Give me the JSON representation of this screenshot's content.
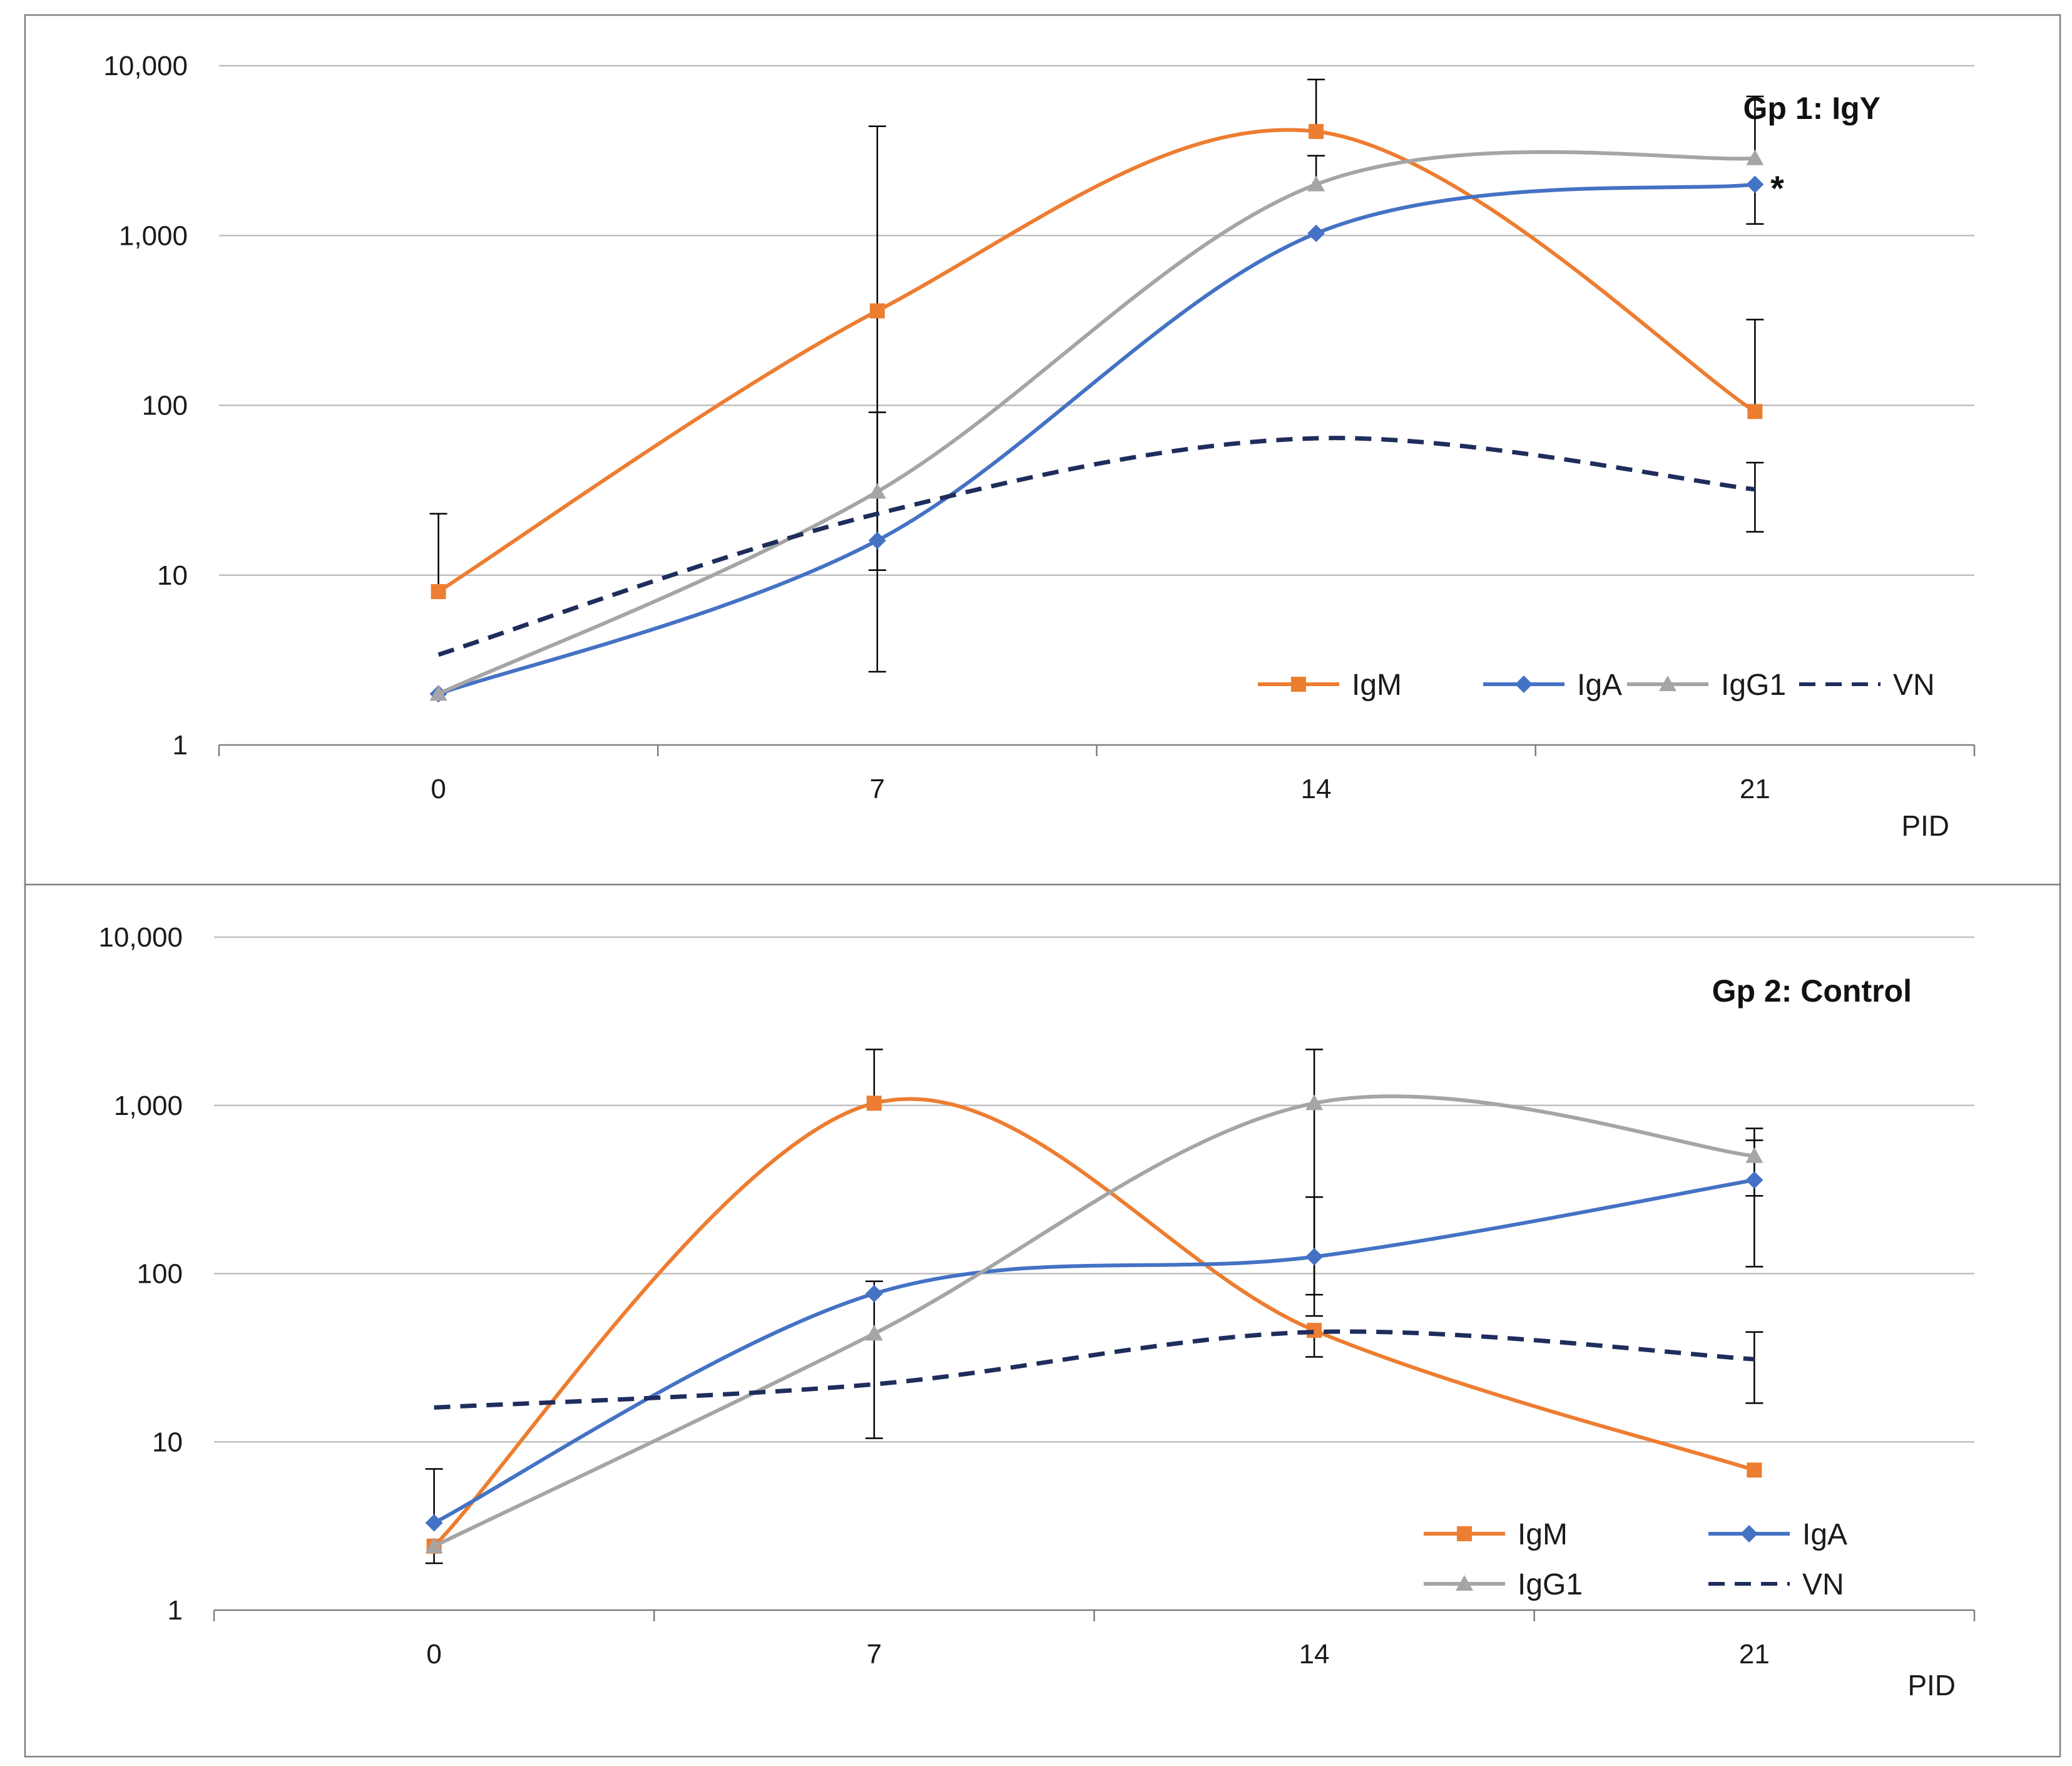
{
  "colors": {
    "IgM": "#ED7D31",
    "IgA": "#4472C4",
    "IgG1": "#A5A5A5",
    "VN": "#1F2D5C",
    "grid": "#BFBFBF",
    "axis": "#7F7F7F",
    "frame": "#7F7F7F",
    "errorbar": "#000000"
  },
  "chart_data": [
    {
      "type": "line",
      "title": "Gp 1: IgY",
      "xlabel": "PID",
      "ylabel": "",
      "yscale": "log",
      "ylim": [
        1,
        10000
      ],
      "ytick_values": [
        1,
        10,
        100,
        1000,
        10000
      ],
      "ytick_labels": [
        "1",
        "10",
        "100",
        "1,000",
        "10,000"
      ],
      "categories": [
        "0",
        "7",
        "14",
        "21"
      ],
      "legend_position": "bottom-right",
      "legend_layout": "single-row",
      "annotation": "*",
      "series": [
        {
          "name": "IgM",
          "marker": "square",
          "dashed": false,
          "values": [
            8,
            360,
            4100,
            92
          ],
          "error_high": [
            23,
            4400,
            8300,
            320
          ],
          "error_low": [
            null,
            2.7,
            null,
            null
          ]
        },
        {
          "name": "IgA",
          "marker": "diamond",
          "dashed": false,
          "values": [
            2,
            16,
            1030,
            2000
          ],
          "error_high": [
            null,
            null,
            null,
            null
          ],
          "error_low": [
            null,
            null,
            null,
            1170
          ]
        },
        {
          "name": "IgG1",
          "marker": "triangle",
          "dashed": false,
          "values": [
            2,
            31,
            2000,
            2850
          ],
          "error_high": [
            null,
            91,
            2950,
            6600
          ],
          "error_low": [
            null,
            10.7,
            null,
            null
          ]
        },
        {
          "name": "VN",
          "marker": "none",
          "dashed": true,
          "values": [
            3.4,
            23,
            64,
            32
          ],
          "error_high": [
            null,
            null,
            null,
            46
          ],
          "error_low": [
            null,
            null,
            null,
            18
          ]
        }
      ]
    },
    {
      "type": "line",
      "title": "Gp 2: Control",
      "xlabel": "PID",
      "ylabel": "",
      "yscale": "log",
      "ylim": [
        1,
        10000
      ],
      "ytick_values": [
        1,
        10,
        100,
        1000,
        10000
      ],
      "ytick_labels": [
        "1",
        "10",
        "100",
        "1,000",
        "10,000"
      ],
      "categories": [
        "0",
        "7",
        "14",
        "21"
      ],
      "legend_position": "bottom-right",
      "legend_layout": "two-rows",
      "series": [
        {
          "name": "IgM",
          "marker": "square",
          "dashed": false,
          "values": [
            2.4,
            1030,
            46,
            6.8
          ],
          "error_high": [
            null,
            2150,
            null,
            null
          ],
          "error_low": [
            null,
            null,
            32,
            null
          ]
        },
        {
          "name": "IgA",
          "marker": "diamond",
          "dashed": false,
          "values": [
            3.3,
            76,
            126,
            360
          ],
          "error_high": [
            6.9,
            null,
            285,
            730
          ],
          "error_low": [
            null,
            null,
            56,
            110
          ]
        },
        {
          "name": "IgG1",
          "marker": "triangle",
          "dashed": false,
          "values": [
            2.4,
            44,
            1030,
            500
          ],
          "error_high": [
            null,
            90,
            2150,
            620
          ],
          "error_low": [
            1.9,
            10.5,
            75,
            290
          ]
        },
        {
          "name": "VN",
          "marker": "none",
          "dashed": true,
          "values": [
            16,
            22,
            45,
            31
          ],
          "error_high": [
            null,
            null,
            null,
            45
          ],
          "error_low": [
            null,
            null,
            null,
            17
          ]
        }
      ]
    }
  ]
}
